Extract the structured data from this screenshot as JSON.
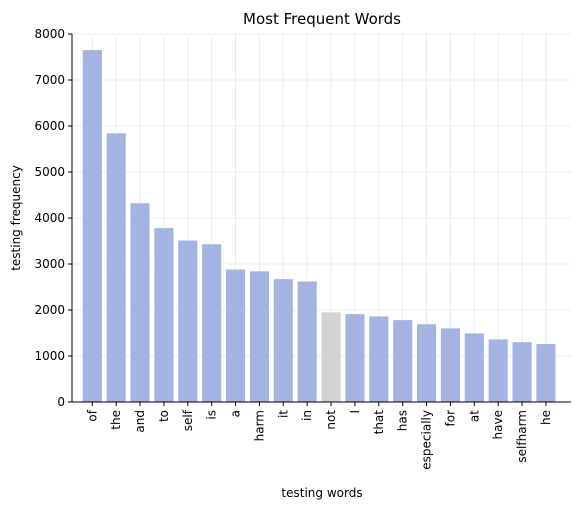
{
  "chart_data": {
    "type": "bar",
    "title": "Most Frequent Words",
    "xlabel": "testing words",
    "ylabel": "testing frequency",
    "categories": [
      "of",
      "the",
      "and",
      "to",
      "self",
      "is",
      "a",
      "harm",
      "it",
      "in",
      "not",
      "I",
      "that",
      "has",
      "especially",
      "for",
      "at",
      "have",
      "selfharm",
      "he"
    ],
    "values": [
      7650,
      5840,
      4320,
      3780,
      3510,
      3430,
      2880,
      2840,
      2670,
      2620,
      1950,
      1910,
      1860,
      1780,
      1690,
      1600,
      1490,
      1360,
      1300,
      1260
    ],
    "ylim": [
      0,
      8000
    ],
    "yticks": [
      0,
      1000,
      2000,
      3000,
      4000,
      5000,
      6000,
      7000,
      8000
    ],
    "grid": true,
    "colors": {
      "bar": "#a4b3e1",
      "highlight": "#d3d3d3",
      "grid": "#e6e6e6",
      "axis": "#000000"
    },
    "highlight_category": "not"
  }
}
